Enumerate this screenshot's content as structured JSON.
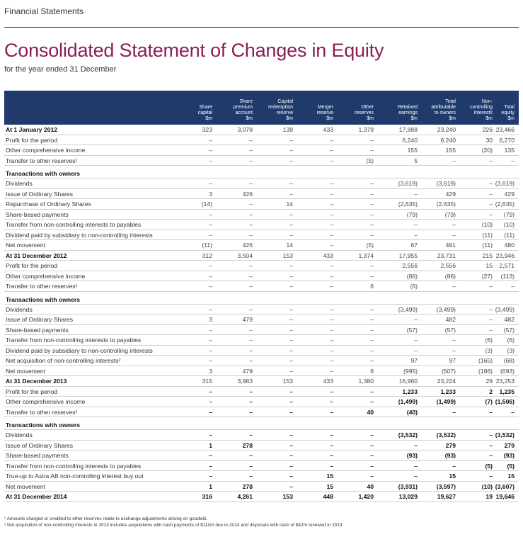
{
  "section": "Financial Statements",
  "title": "Consolidated Statement of Changes in Equity",
  "subtitle": "for the year ended 31 December",
  "columns": [
    [
      "Share",
      "capital",
      "$m"
    ],
    [
      "Share",
      "premium",
      "account",
      "$m"
    ],
    [
      "Capital",
      "redemption",
      "reserve",
      "$m"
    ],
    [
      "Merger",
      "reserve",
      "$m"
    ],
    [
      "Other",
      "reserves",
      "$m"
    ],
    [
      "Retained",
      "earnings",
      "$m"
    ],
    [
      "Total",
      "attributable",
      "to owners",
      "$m"
    ],
    [
      "Non-",
      "controlling",
      "interests",
      "$m"
    ],
    [
      "Total",
      "equity",
      "$m"
    ]
  ],
  "rows": [
    {
      "label": "At 1 January 2012",
      "style": "bold",
      "values": [
        "323",
        "3,078",
        "139",
        "433",
        "1,379",
        "17,888",
        "23,240",
        "226",
        "23,466"
      ]
    },
    {
      "label": "Profit for the period",
      "values": [
        "–",
        "–",
        "–",
        "–",
        "–",
        "6,240",
        "6,240",
        "30",
        "6,270"
      ]
    },
    {
      "label": "Other comprehensive income",
      "values": [
        "–",
        "–",
        "–",
        "–",
        "–",
        "155",
        "155",
        "(20)",
        "135"
      ]
    },
    {
      "label": "Transfer to other reserves¹",
      "values": [
        "–",
        "–",
        "–",
        "–",
        "(5)",
        "5",
        "–",
        "–",
        "–"
      ]
    },
    {
      "label": "Transactions with owners",
      "style": "section",
      "values": [
        "",
        "",
        "",
        "",
        "",
        "",
        "",
        "",
        ""
      ]
    },
    {
      "label": "Dividends",
      "values": [
        "–",
        "–",
        "–",
        "–",
        "–",
        "(3,619)",
        "(3,619)",
        "–",
        "(3,619)"
      ]
    },
    {
      "label": "Issue of Ordinary Shares",
      "values": [
        "3",
        "426",
        "–",
        "–",
        "–",
        "–",
        "429",
        "–",
        "429"
      ]
    },
    {
      "label": "Repurchase of Ordinary Shares",
      "values": [
        "(14)",
        "–",
        "14",
        "–",
        "–",
        "(2,635)",
        "(2,635)",
        "–",
        "(2,635)"
      ]
    },
    {
      "label": "Share-based payments",
      "values": [
        "–",
        "–",
        "–",
        "–",
        "–",
        "(79)",
        "(79)",
        "–",
        "(79)"
      ]
    },
    {
      "label": "Transfer from non-controlling interests to payables",
      "values": [
        "–",
        "–",
        "–",
        "–",
        "–",
        "–",
        "–",
        "(10)",
        "(10)"
      ]
    },
    {
      "label": "Dividend paid by subsidiary to non-controlling interests",
      "values": [
        "–",
        "–",
        "–",
        "–",
        "–",
        "–",
        "–",
        "(11)",
        "(11)"
      ]
    },
    {
      "label": "Net movement",
      "values": [
        "(11)",
        "426",
        "14",
        "–",
        "(5)",
        "67",
        "491",
        "(11)",
        "480"
      ]
    },
    {
      "label": "At 31 December 2012",
      "style": "bold",
      "values": [
        "312",
        "3,504",
        "153",
        "433",
        "1,374",
        "17,955",
        "23,731",
        "215",
        "23,946"
      ]
    },
    {
      "label": "Profit for the period",
      "values": [
        "–",
        "–",
        "–",
        "–",
        "–",
        "2,556",
        "2,556",
        "15",
        "2,571"
      ]
    },
    {
      "label": "Other comprehensive income",
      "values": [
        "–",
        "–",
        "–",
        "–",
        "–",
        "(86)",
        "(86)",
        "(27)",
        "(113)"
      ]
    },
    {
      "label": "Transfer to other reserves¹",
      "values": [
        "–",
        "–",
        "–",
        "–",
        "6",
        "(6)",
        "–",
        "–",
        "–"
      ]
    },
    {
      "label": "Transactions with owners",
      "style": "section",
      "values": [
        "",
        "",
        "",
        "",
        "",
        "",
        "",
        "",
        ""
      ]
    },
    {
      "label": "Dividends",
      "values": [
        "–",
        "–",
        "–",
        "–",
        "–",
        "(3,499)",
        "(3,499)",
        "–",
        "(3,499)"
      ]
    },
    {
      "label": "Issue of Ordinary Shares",
      "values": [
        "3",
        "479",
        "–",
        "–",
        "–",
        "–",
        "482",
        "–",
        "482"
      ]
    },
    {
      "label": "Share-based payments",
      "values": [
        "–",
        "–",
        "–",
        "–",
        "–",
        "(57)",
        "(57)",
        "–",
        "(57)"
      ]
    },
    {
      "label": "Transfer from non-controlling interests to payables",
      "values": [
        "–",
        "–",
        "–",
        "–",
        "–",
        "–",
        "–",
        "(6)",
        "(6)"
      ]
    },
    {
      "label": "Dividend paid by subsidiary to non-controlling interests",
      "values": [
        "–",
        "–",
        "–",
        "–",
        "–",
        "–",
        "–",
        "(3)",
        "(3)"
      ]
    },
    {
      "label": "Net acquisition of non-controlling interests²",
      "values": [
        "–",
        "–",
        "–",
        "–",
        "–",
        "97",
        "97",
        "(165)",
        "(68)"
      ]
    },
    {
      "label": "Net movement",
      "values": [
        "3",
        "479",
        "–",
        "–",
        "6",
        "(995)",
        "(507)",
        "(186)",
        "(693)"
      ]
    },
    {
      "label": "At 31 December 2013",
      "style": "bold",
      "values": [
        "315",
        "3,983",
        "153",
        "433",
        "1,380",
        "16,960",
        "23,224",
        "29",
        "23,253"
      ]
    },
    {
      "label": "Profit for the period",
      "style": "v2014",
      "values": [
        "–",
        "–",
        "–",
        "–",
        "–",
        "1,233",
        "1,233",
        "2",
        "1,235"
      ]
    },
    {
      "label": "Other comprehensive income",
      "style": "v2014",
      "values": [
        "–",
        "–",
        "–",
        "–",
        "–",
        "(1,499)",
        "(1,499)",
        "(7)",
        "(1,506)"
      ]
    },
    {
      "label": "Transfer to other reserves¹",
      "style": "v2014",
      "values": [
        "–",
        "–",
        "–",
        "–",
        "40",
        "(40)",
        "–",
        "–",
        "–"
      ]
    },
    {
      "label": "Transactions with owners",
      "style": "section",
      "values": [
        "",
        "",
        "",
        "",
        "",
        "",
        "",
        "",
        ""
      ]
    },
    {
      "label": "Dividends",
      "style": "v2014",
      "values": [
        "–",
        "–",
        "–",
        "–",
        "–",
        "(3,532)",
        "(3,532)",
        "–",
        "(3,532)"
      ]
    },
    {
      "label": "Issue of Ordinary Shares",
      "style": "v2014",
      "values": [
        "1",
        "278",
        "–",
        "–",
        "–",
        "–",
        "279",
        "–",
        "279"
      ]
    },
    {
      "label": "Share-based payments",
      "style": "v2014",
      "values": [
        "–",
        "–",
        "–",
        "–",
        "–",
        "(93)",
        "(93)",
        "–",
        "(93)"
      ]
    },
    {
      "label": "Transfer from non-controlling interests to payables",
      "style": "v2014",
      "values": [
        "–",
        "–",
        "–",
        "–",
        "–",
        "–",
        "–",
        "(5)",
        "(5)"
      ]
    },
    {
      "label": "True-up to Astra AB non-controlling interest buy out",
      "style": "v2014",
      "values": [
        "–",
        "–",
        "–",
        "15",
        "–",
        "–",
        "15",
        "–",
        "15"
      ]
    },
    {
      "label": "Net movement",
      "style": "v2014",
      "values": [
        "1",
        "278",
        "–",
        "15",
        "40",
        "(3,931)",
        "(3,597)",
        "(10)",
        "(3,607)"
      ]
    },
    {
      "label": "At 31 December 2014",
      "style": "total2014",
      "values": [
        "316",
        "4,261",
        "153",
        "448",
        "1,420",
        "13,029",
        "19,627",
        "19",
        "19,646"
      ]
    }
  ],
  "footnotes": [
    "¹ Amounts charged or credited to other reserves relate to exchange adjustments arising on goodwill.",
    "² Net acquisition of non-controlling interests in 2013 includes acquisitions with cash payments of $110m due in 2014 and disposals with cash of $42m received in 2013."
  ]
}
